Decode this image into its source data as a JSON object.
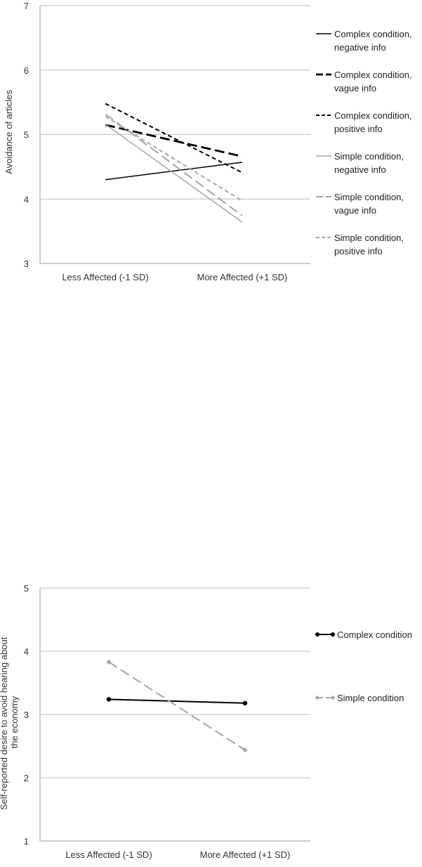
{
  "chart_data": [
    {
      "type": "line",
      "title": "",
      "xlabel": "",
      "ylabel": "Avoidance of articles",
      "ylim": [
        3,
        7
      ],
      "yticks": [
        "3",
        "4",
        "5",
        "6",
        "7"
      ],
      "categories": [
        "Less Affected (-1 SD)",
        "More Affected (+1 SD)"
      ],
      "grid": true,
      "legend_position": "right",
      "series": [
        {
          "name": "Complex condition, negative info",
          "values": [
            4.3,
            4.57
          ],
          "color": "#000000",
          "dash": "solid",
          "width": "thin"
        },
        {
          "name": "Complex condition, vague info",
          "values": [
            5.15,
            4.66
          ],
          "color": "#000000",
          "dash": "longdash",
          "width": "thick"
        },
        {
          "name": "Complex condition, positive info",
          "values": [
            5.48,
            4.41
          ],
          "color": "#000000",
          "dash": "shortdash",
          "width": "medium"
        },
        {
          "name": "Simple condition, negative info",
          "values": [
            5.16,
            3.64
          ],
          "color": "#a6a6a6",
          "dash": "solid",
          "width": "thin"
        },
        {
          "name": "Simple condition, vague info",
          "values": [
            5.32,
            3.74
          ],
          "color": "#a6a6a6",
          "dash": "longdash",
          "width": "medium"
        },
        {
          "name": "Simple condition, positive info",
          "values": [
            5.28,
            3.97
          ],
          "color": "#a6a6a6",
          "dash": "shortdash",
          "width": "medium"
        }
      ]
    },
    {
      "type": "line",
      "title": "",
      "xlabel": "",
      "ylabel": "Self-reported desire to avoid hearing about the economy",
      "ylim": [
        1,
        5
      ],
      "yticks": [
        "1",
        "2",
        "3",
        "4",
        "5"
      ],
      "categories": [
        "Less Affected (-1 SD)",
        "More Affected (+1 SD)"
      ],
      "grid": true,
      "legend_position": "right",
      "series": [
        {
          "name": "Complex condition",
          "values": [
            3.24,
            3.18
          ],
          "color": "#000000",
          "dash": "solid",
          "marker": "circle"
        },
        {
          "name": "Simple condition",
          "values": [
            3.83,
            2.44
          ],
          "color": "#a6a6a6",
          "dash": "longdash",
          "marker": "diamond"
        }
      ]
    }
  ]
}
